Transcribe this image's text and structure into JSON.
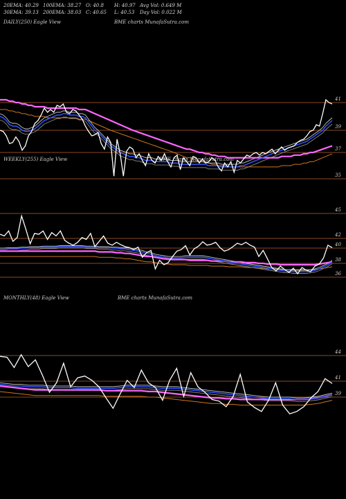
{
  "header": {
    "ema20": "20EMA: 40.29",
    "ema100": "100EMA: 38.27",
    "open": "O: 40.8",
    "high": "H: 40.97",
    "avgvol": "Avg Vol: 0.649 M",
    "ema30": "30EMA: 39.13",
    "ema200": "200EMA: 38.03",
    "close": "C: 40.65",
    "low": "L: 40.53",
    "dayvol": "Day Vol: 0.022 M"
  },
  "colors": {
    "background": "#000000",
    "price": "#ffffff",
    "ema_fast": "#3355ff",
    "ema_slow": "#ff66ff",
    "ema_mid1": "#c8c8c8",
    "ema_mid2": "#8a8a8a",
    "ema_long": "#d0751d",
    "level_line": "#8b4a22"
  },
  "chart_data": [
    {
      "type": "line",
      "title": "DAILY(250) Eagle View",
      "watermark": "BME charts MunafaSutra.com",
      "y_ticks": [
        "41",
        "39",
        "37",
        "35"
      ],
      "price": [
        39.0,
        38.9,
        38.5,
        37.8,
        37.9,
        38.4,
        38.0,
        37.2,
        37.6,
        38.5,
        38.9,
        39.5,
        39.7,
        40.1,
        40.6,
        40.3,
        40.5,
        40.3,
        40.8,
        40.7,
        40.9,
        40.3,
        40.2,
        40.5,
        40.4,
        40.1,
        39.8,
        39.3,
        38.9,
        38.5,
        38.6,
        38.8,
        37.8,
        37.3,
        38.4,
        37.9,
        35.2,
        38.2,
        36.9,
        35.2,
        37.1,
        37.5,
        37.3,
        36.6,
        36.9,
        36.4,
        36.0,
        36.9,
        36.4,
        36.2,
        36.7,
        36.4,
        36.9,
        36.3,
        35.9,
        36.6,
        36.8,
        35.7,
        36.6,
        36.3,
        36.0,
        36.7,
        36.6,
        36.2,
        36.5,
        36.2,
        36.3,
        36.6,
        36.4,
        35.9,
        35.6,
        36.2,
        35.9,
        36.3,
        35.5,
        36.4,
        36.2,
        36.5,
        36.8,
        36.7,
        36.9,
        37.0,
        36.8,
        37.0,
        36.9,
        37.1,
        37.3,
        36.9,
        37.2,
        37.5,
        37.2,
        37.4,
        37.5,
        37.6,
        37.9,
        38.1,
        38.2,
        38.5,
        38.9,
        39.0,
        39.4,
        39.3,
        40.2,
        41.2,
        41.0,
        40.9
      ],
      "ema_fast": [
        40.0,
        39.9,
        39.7,
        39.4,
        39.3,
        39.3,
        39.2,
        39.0,
        38.9,
        38.9,
        39.0,
        39.1,
        39.3,
        39.5,
        39.7,
        39.8,
        39.9,
        40.0,
        40.1,
        40.1,
        40.2,
        40.2,
        40.1,
        40.1,
        40.1,
        40.0,
        40.0,
        39.9,
        39.6,
        39.3,
        39.0,
        38.8,
        38.5,
        38.2,
        37.9,
        37.6,
        37.4,
        37.2,
        37.0,
        36.9,
        36.8,
        36.7,
        36.7,
        36.6,
        36.6,
        36.5,
        36.4,
        36.4,
        36.4,
        36.3,
        36.3,
        36.3,
        36.3,
        36.3,
        36.2,
        36.2,
        36.2,
        36.1,
        36.1,
        36.1,
        36.1,
        36.1,
        36.1,
        36.1,
        36.1,
        36.1,
        36.0,
        36.0,
        36.0,
        36.0,
        35.9,
        35.9,
        35.9,
        35.9,
        35.9,
        35.9,
        36.0,
        36.0,
        36.1,
        36.2,
        36.3,
        36.4,
        36.5,
        36.6,
        36.7,
        36.8,
        36.9,
        37.0,
        37.1,
        37.2,
        37.3,
        37.4,
        37.5,
        37.6,
        37.7,
        37.8,
        37.9,
        38.0,
        38.2,
        38.4,
        38.6,
        38.8,
        39.0,
        39.3,
        39.5,
        39.7
      ],
      "ema_slow": [
        41.2,
        41.2,
        41.2,
        41.1,
        41.1,
        41.0,
        41.0,
        40.9,
        40.9,
        40.8,
        40.8,
        40.7,
        40.7,
        40.7,
        40.7,
        40.6,
        40.6,
        40.6,
        40.6,
        40.6,
        40.6,
        40.6,
        40.6,
        40.6,
        40.6,
        40.5,
        40.5,
        40.5,
        40.4,
        40.3,
        40.2,
        40.1,
        40.0,
        39.9,
        39.8,
        39.7,
        39.6,
        39.5,
        39.4,
        39.3,
        39.2,
        39.1,
        39.0,
        38.9,
        38.8,
        38.7,
        38.6,
        38.5,
        38.4,
        38.3,
        38.2,
        38.1,
        38.0,
        37.9,
        37.8,
        37.7,
        37.6,
        37.5,
        37.4,
        37.3,
        37.3,
        37.2,
        37.1,
        37.0,
        37.0,
        36.9,
        36.9,
        36.8,
        36.8,
        36.7,
        36.7,
        36.7,
        36.6,
        36.6,
        36.6,
        36.6,
        36.6,
        36.6,
        36.6,
        36.6,
        36.6,
        36.6,
        36.6,
        36.6,
        36.6,
        36.6,
        36.6,
        36.6,
        36.6,
        36.7,
        36.7,
        36.7,
        36.7,
        36.8,
        36.8,
        36.8,
        36.9,
        36.9,
        37.0,
        37.0,
        37.1,
        37.2,
        37.3,
        37.4,
        37.5,
        37.6
      ]
    },
    {
      "type": "line",
      "title": "WEEKLY(255) Eagle View",
      "watermark": "BME charts MunafaSutra.com",
      "y_ticks": [
        "45",
        "42",
        "40",
        "38",
        "36"
      ],
      "price": [
        42.5,
        42.3,
        42.9,
        41.4,
        42.1,
        44.7,
        43.1,
        40.9,
        42.6,
        42.5,
        42.9,
        41.8,
        42.7,
        42.3,
        42.9,
        41.6,
        41.0,
        40.6,
        41.2,
        42.1,
        41.8,
        42.6,
        40.3,
        41.4,
        42.3,
        41.0,
        40.6,
        41.2,
        40.7,
        40.3,
        40.1,
        39.8,
        40.2,
        38.8,
        39.4,
        39.7,
        37.2,
        38.4,
        37.8,
        38.1,
        38.9,
        39.6,
        39.8,
        40.5,
        39.1,
        39.9,
        40.4,
        41.3,
        40.6,
        40.8,
        41.2,
        40.1,
        39.6,
        39.8,
        40.3,
        41.0,
        40.7,
        41.2,
        40.6,
        40.2,
        38.9,
        39.7,
        38.6,
        37.4,
        36.9,
        37.6,
        37.1,
        36.7,
        37.3,
        36.5,
        37.4,
        37.0,
        36.8,
        37.6,
        37.9,
        38.7,
        40.6,
        40.1
      ],
      "ema_fast": [
        39.8,
        39.8,
        39.9,
        39.9,
        39.9,
        40.0,
        40.0,
        40.1,
        40.1,
        40.1,
        40.2,
        40.2,
        40.2,
        40.2,
        40.3,
        40.3,
        40.3,
        40.3,
        40.3,
        40.3,
        40.2,
        40.2,
        40.2,
        40.1,
        40.1,
        40.1,
        40.0,
        40.0,
        39.9,
        39.9,
        39.8,
        39.7,
        39.6,
        39.5,
        39.3,
        39.2,
        39.0,
        38.9,
        38.8,
        38.7,
        38.7,
        38.7,
        38.7,
        38.8,
        38.8,
        38.8,
        38.8,
        38.8,
        38.7,
        38.6,
        38.5,
        38.4,
        38.3,
        38.2,
        38.1,
        38.0,
        37.9,
        37.8,
        37.7,
        37.6,
        37.5,
        37.4,
        37.3,
        37.2,
        37.1,
        37.0,
        36.9,
        36.9,
        36.8,
        36.8,
        36.8,
        36.8,
        36.9,
        37.0,
        37.2,
        37.5,
        37.8,
        38.2
      ],
      "ema_slow": [
        39.6,
        39.6,
        39.6,
        39.6,
        39.6,
        39.6,
        39.6,
        39.6,
        39.6,
        39.6,
        39.6,
        39.6,
        39.6,
        39.6,
        39.6,
        39.6,
        39.6,
        39.6,
        39.6,
        39.6,
        39.6,
        39.6,
        39.6,
        39.5,
        39.5,
        39.5,
        39.5,
        39.4,
        39.4,
        39.3,
        39.3,
        39.2,
        39.1,
        39.0,
        38.9,
        38.9,
        38.8,
        38.7,
        38.6,
        38.6,
        38.5,
        38.5,
        38.5,
        38.5,
        38.4,
        38.4,
        38.4,
        38.4,
        38.4,
        38.3,
        38.3,
        38.3,
        38.3,
        38.2,
        38.2,
        38.2,
        38.2,
        38.1,
        38.1,
        38.1,
        38.0,
        38.0,
        37.9,
        37.9,
        37.9,
        37.8,
        37.8,
        37.8,
        37.8,
        37.8,
        37.8,
        37.8,
        37.8,
        37.8,
        37.9,
        38.0,
        38.1,
        38.2
      ]
    },
    {
      "type": "line",
      "title": "MONTHLY(48) Eagle View",
      "watermark": "BME charts MunafaSutra.com",
      "y_ticks": [
        "44",
        "41",
        "39"
      ],
      "price": [
        43.9,
        43.8,
        42.6,
        44.1,
        42.7,
        43.5,
        41.7,
        39.6,
        40.8,
        43.1,
        40.3,
        41.4,
        41.6,
        41.1,
        40.3,
        38.9,
        37.6,
        39.4,
        41.1,
        40.2,
        42.3,
        40.8,
        40.2,
        38.6,
        41.1,
        42.5,
        39.1,
        42.0,
        40.3,
        39.6,
        38.7,
        38.5,
        37.8,
        39.1,
        41.8,
        38.4,
        37.7,
        37.2,
        38.6,
        40.8,
        38.0,
        36.9,
        37.2,
        37.8,
        38.9,
        39.7,
        41.3,
        40.7
      ],
      "ema_fast": [
        40.6,
        40.5,
        40.4,
        40.4,
        40.3,
        40.3,
        40.3,
        40.2,
        40.2,
        40.2,
        40.2,
        40.1,
        40.1,
        40.1,
        40.1,
        40.1,
        40.1,
        40.2,
        40.3,
        40.3,
        40.3,
        40.3,
        40.2,
        40.1,
        40.1,
        40.1,
        40.0,
        39.9,
        39.8,
        39.7,
        39.6,
        39.5,
        39.4,
        39.3,
        39.2,
        39.1,
        39.0,
        38.9,
        38.8,
        38.8,
        38.8,
        38.8,
        38.7,
        38.7,
        38.8,
        38.9,
        39.1,
        39.3
      ],
      "ema_slow": [
        40.4,
        40.3,
        40.2,
        40.1,
        40.0,
        39.9,
        39.9,
        39.9,
        39.9,
        39.9,
        39.9,
        39.9,
        39.9,
        39.9,
        39.9,
        39.8,
        39.8,
        39.8,
        39.8,
        39.8,
        39.8,
        39.7,
        39.7,
        39.6,
        39.5,
        39.4,
        39.3,
        39.2,
        39.1,
        39.0,
        38.9,
        38.9,
        38.8,
        38.8,
        38.7,
        38.7,
        38.7,
        38.7,
        38.7,
        38.7,
        38.7,
        38.7,
        38.7,
        38.7,
        38.8,
        38.9,
        39.1,
        39.3
      ]
    }
  ]
}
